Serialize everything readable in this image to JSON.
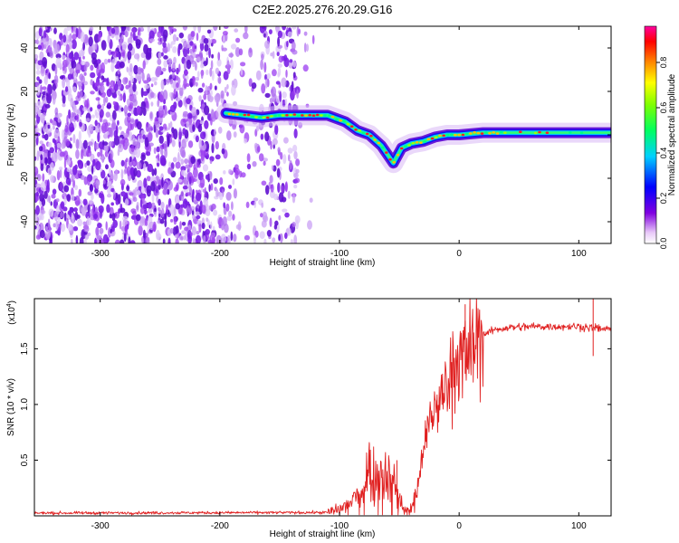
{
  "title": "C2E2.2025.276.20.29.G16",
  "chart_data": [
    {
      "type": "heatmap",
      "title": "C2E2.2025.276.20.29.G16",
      "xlabel": "Height of straight line (km)",
      "ylabel": "Frequency (Hz)",
      "xlim": [
        -355,
        127
      ],
      "ylim": [
        -50,
        50
      ],
      "x_ticks": [
        -300,
        -200,
        -100,
        0,
        100
      ],
      "y_ticks": [
        -40,
        -20,
        0,
        20,
        40
      ],
      "colorbar": {
        "label": "Normalized spectral amplitude",
        "range": [
          0.0,
          0.96
        ],
        "ticks": [
          0.0,
          0.2,
          0.4,
          0.6,
          0.8
        ],
        "tick_labels": [
          "0.0",
          "0.2",
          "0.4",
          "0.6",
          "0.8"
        ]
      },
      "ridge": {
        "x": [
          -195,
          -180,
          -165,
          -150,
          -130,
          -110,
          -95,
          -85,
          -75,
          -65,
          -55,
          -48,
          -40,
          -30,
          -20,
          -10,
          0,
          20,
          50,
          80,
          110,
          127
        ],
        "y": [
          10,
          9,
          8,
          9,
          9,
          9,
          6,
          2,
          0,
          -5,
          -13,
          -6,
          -4,
          -3,
          -1,
          0,
          0,
          1,
          1,
          1,
          1,
          1
        ]
      }
    },
    {
      "type": "line",
      "xlabel": "Height of straight line (km)",
      "ylabel": "SNR (10 * v/v)",
      "scale_label": "(x10",
      "scale_exp": "4",
      "scale_suffix": ")",
      "xlim": [
        -355,
        127
      ],
      "ylim": [
        0.0,
        1.95
      ],
      "x_ticks": [
        -300,
        -200,
        -100,
        0,
        100
      ],
      "y_ticks": [
        0.5,
        1.0,
        1.5
      ],
      "y_tick_labels": [
        "0.5",
        "1.0",
        "1.5"
      ],
      "color": "#e02020",
      "envelope": {
        "x": [
          -355,
          -110,
          -100,
          -90,
          -80,
          -75,
          -70,
          -65,
          -60,
          -55,
          -50,
          -45,
          -40,
          -35,
          -30,
          -25,
          -20,
          -15,
          -10,
          -5,
          0,
          5,
          10,
          15,
          20,
          30,
          40,
          60,
          80,
          100,
          110,
          127
        ],
        "y": [
          0.025,
          0.03,
          0.06,
          0.12,
          0.25,
          0.45,
          0.35,
          0.4,
          0.38,
          0.3,
          0.15,
          0.05,
          0.06,
          0.25,
          0.6,
          0.9,
          1.0,
          1.1,
          1.25,
          1.35,
          1.45,
          1.5,
          1.55,
          1.6,
          1.63,
          1.67,
          1.69,
          1.7,
          1.7,
          1.7,
          1.69,
          1.67
        ]
      },
      "peaks": {
        "x": [
          -75,
          -52,
          5,
          112
        ],
        "y": [
          0.65,
          0.5,
          1.9,
          1.95
        ]
      }
    }
  ]
}
